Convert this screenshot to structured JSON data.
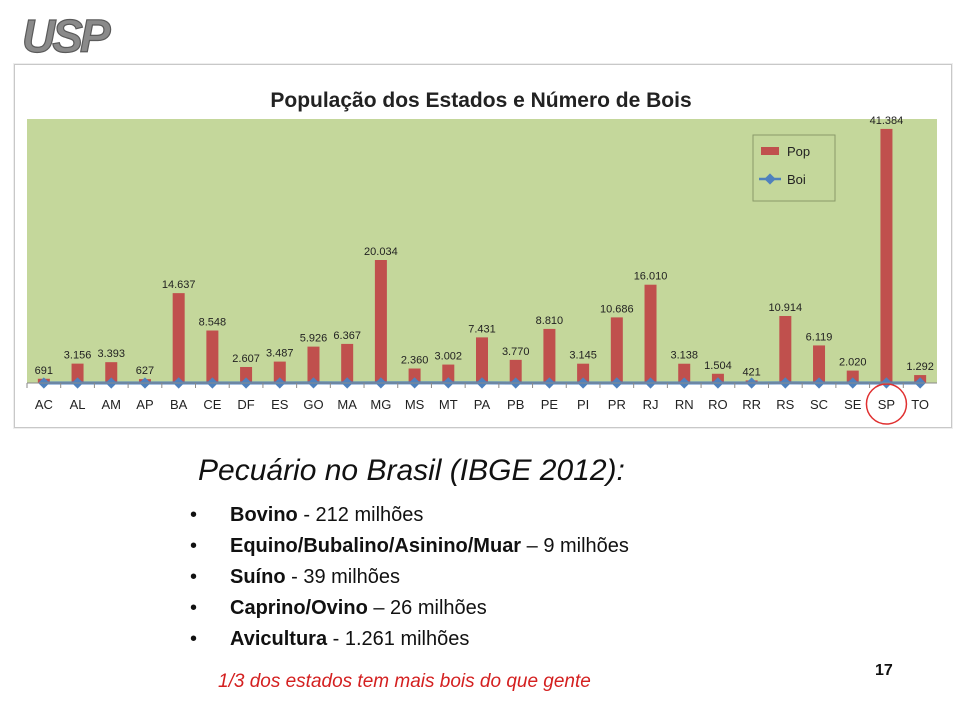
{
  "logo": {
    "text": "USP"
  },
  "chart_data": {
    "type": "bar",
    "title": "População dos Estados e Número de Bois",
    "categories": [
      "AC",
      "AL",
      "AM",
      "AP",
      "BA",
      "CE",
      "DF",
      "ES",
      "GO",
      "MA",
      "MG",
      "MS",
      "MT",
      "PA",
      "PB",
      "PE",
      "PI",
      "PR",
      "RJ",
      "RN",
      "RO",
      "RR",
      "RS",
      "SC",
      "SE",
      "SP",
      "TO"
    ],
    "series": [
      {
        "name": "Pop",
        "type": "bar",
        "color": "#c0504d",
        "values": [
          691,
          3156,
          3393,
          627,
          14637,
          8548,
          2607,
          3487,
          5926,
          6367,
          20034,
          2360,
          3002,
          7431,
          3770,
          8810,
          3145,
          10686,
          16010,
          3138,
          1504,
          421,
          10914,
          6119,
          2020,
          41384,
          1292
        ],
        "labels": [
          "691",
          "3.156",
          "3.393",
          "627",
          "14.637",
          "8.548",
          "2.607",
          "3.487",
          "5.926",
          "6.367",
          "20.034",
          "2.360",
          "3.002",
          "7.431",
          "3.770",
          "8.810",
          "3.145",
          "10.686",
          "16.010",
          "3.138",
          "1.504",
          "421",
          "10.914",
          "6.119",
          "2.020",
          "41.384",
          "1.292"
        ]
      },
      {
        "name": "Boi",
        "type": "line",
        "color": "#4f81bd",
        "values": [
          2.6,
          1.2,
          1.3,
          0.1,
          10.7,
          2.8,
          0.1,
          1.9,
          20.3,
          7.1,
          22.0,
          22.0,
          28.4,
          16.9,
          1.1,
          2.2,
          1.6,
          9.1,
          2.2,
          1.0,
          11.2,
          0.5,
          14.3,
          4.4,
          1.6,
          11.1,
          7.5
        ]
      }
    ],
    "ylim": [
      0,
      43000
    ],
    "secondary_ylim": [
      0,
      49000
    ],
    "grid": false,
    "legend": "top-right",
    "background": "#c4d79b",
    "highlight_category": "SP",
    "highlight_color": "#e03030"
  },
  "text": {
    "heading": "Pecuário no Brasil (IBGE 2012):",
    "bullets": [
      {
        "bold": "Bovino",
        "rest": " - 212 milhões"
      },
      {
        "bold": "Equino/Bubalino/Asinino/Muar",
        "rest": " – 9 milhões"
      },
      {
        "bold": "Suíno",
        "rest": " - 39 milhões"
      },
      {
        "bold": "Caprino/Ovino",
        "rest": " – 26 milhões"
      },
      {
        "bold": "Avicultura",
        "rest": " - 1.261 milhões"
      }
    ],
    "footnote": "1/3 dos estados tem mais bois do que gente",
    "page_number": "17"
  }
}
